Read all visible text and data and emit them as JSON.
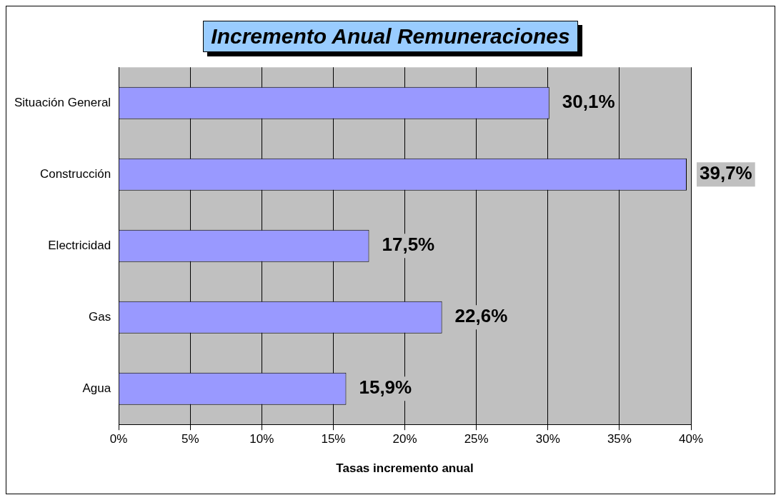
{
  "chart_data": {
    "type": "bar",
    "orientation": "horizontal",
    "title": "Incremento Anual Remuneraciones",
    "xlabel": "Tasas incremento anual",
    "categories": [
      "Situación General",
      "Construcción",
      "Electricidad",
      "Gas",
      "Agua"
    ],
    "values": [
      30.1,
      39.7,
      17.5,
      22.6,
      15.9
    ],
    "value_labels": [
      "30,1%",
      "39,7%",
      "17,5%",
      "22,6%",
      "15,9%"
    ],
    "color": "#9999ff",
    "xlim": [
      0,
      40
    ],
    "xticks": [
      {
        "value": 0,
        "label": "0%"
      },
      {
        "value": 5,
        "label": "5%"
      },
      {
        "value": 10,
        "label": "10%"
      },
      {
        "value": 15,
        "label": "15%"
      },
      {
        "value": 20,
        "label": "20%"
      },
      {
        "value": 25,
        "label": "25%"
      },
      {
        "value": 30,
        "label": "30%"
      },
      {
        "value": 35,
        "label": "35%"
      },
      {
        "value": 40,
        "label": "40%"
      }
    ],
    "grid": "x",
    "legend": false
  }
}
